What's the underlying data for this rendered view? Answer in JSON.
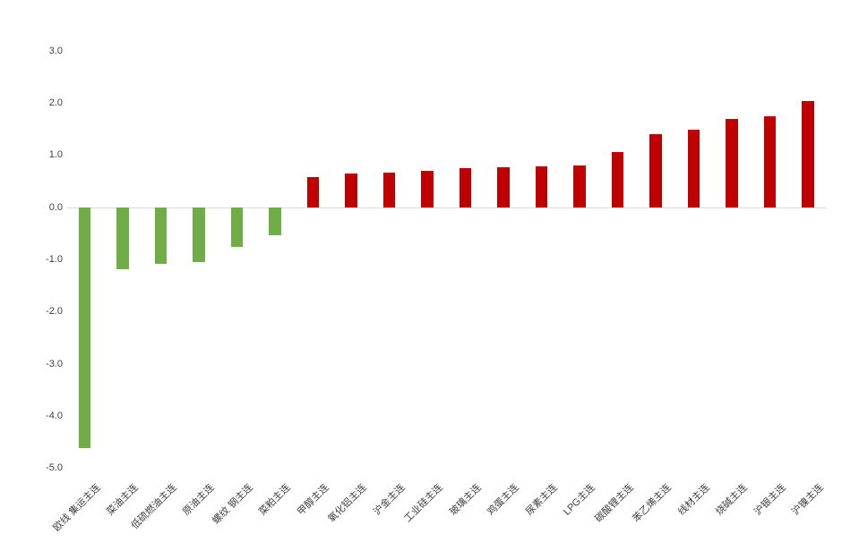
{
  "chart_data": {
    "type": "bar",
    "title": "",
    "xlabel": "",
    "ylabel": "",
    "legend": "none",
    "grid": "zero-line-only",
    "ylim": [
      -5.0,
      3.0
    ],
    "ytick_step": 1.0,
    "ytick_labels": [
      "3.0",
      "2.0",
      "1.0",
      "0.0",
      "-1.0",
      "-2.0",
      "-3.0",
      "-4.0",
      "-5.0"
    ],
    "ytick_values": [
      3,
      2,
      1,
      0,
      -1,
      -2,
      -3,
      -4,
      -5
    ],
    "categories": [
      "欧线 集运主连",
      "菜油主连",
      "低硫燃油主连",
      "原油主连",
      "螺纹 钢主连",
      "菜粕主连",
      "甲醇主连",
      "氧化铝主连",
      "沪金主连",
      "工业硅主连",
      "玻璃主连",
      "鸡蛋主连",
      "尿素主连",
      "LPG主连",
      "碳酸锂主连",
      "苯乙烯主连",
      "线材主连",
      "烧碱主连",
      "沪银主连",
      "沪镍主连"
    ],
    "values": [
      -4.62,
      -1.18,
      -1.09,
      -1.05,
      -0.76,
      -0.54,
      0.58,
      0.64,
      0.66,
      0.69,
      0.75,
      0.77,
      0.79,
      0.8,
      1.05,
      1.4,
      1.48,
      1.7,
      1.75,
      2.03
    ],
    "positive_color": "#c00000",
    "negative_color": "#70ad47",
    "gridline_color": "#d9d9d9",
    "axis_text_color": "#404040"
  }
}
